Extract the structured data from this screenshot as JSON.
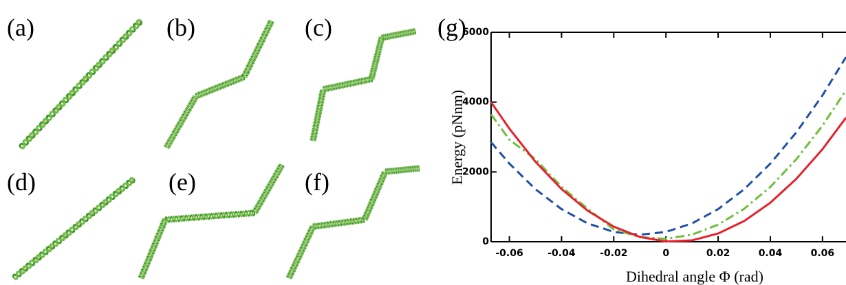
{
  "panels": [
    "(a)",
    "(b)",
    "(c)",
    "(d)",
    "(e)",
    "(f)"
  ],
  "chart_data": {
    "type": "line",
    "panel_label": "(g)",
    "xlabel": "Dihedral angle Φ (rad)",
    "ylabel": "Energy (pNnm)",
    "xlim": [
      -0.067,
      0.069
    ],
    "xticks": [
      -0.06,
      -0.04,
      -0.02,
      0,
      0.02,
      0.04,
      0.06
    ],
    "ylim": [
      0,
      6000
    ],
    "yticks": [
      0,
      2000,
      4000,
      6000
    ],
    "grid": false,
    "x": [
      -0.067,
      -0.06,
      -0.05,
      -0.04,
      -0.03,
      -0.02,
      -0.01,
      0,
      0.01,
      0.02,
      0.03,
      0.04,
      0.05,
      0.06,
      0.069
    ],
    "series": [
      {
        "color": "#1f4fa8",
        "linestyle": "dashed",
        "values": [
          2850,
          2239,
          1505,
          934,
          526,
          282,
          200,
          282,
          526,
          934,
          1505,
          2239,
          3136,
          4196,
          5290
        ]
      },
      {
        "color": "#6dbf3a",
        "linestyle": "dashdot",
        "values": [
          3650,
          2923,
          2365,
          1571,
          945,
          354,
          134,
          83,
          202,
          489,
          945,
          1571,
          2365,
          3328,
          4340
        ]
      },
      {
        "color": "#e8202a",
        "linestyle": "solid",
        "values": [
          3998,
          3239,
          2292,
          1509,
          889,
          432,
          138,
          7,
          40,
          236,
          595,
          1117,
          1803,
          2651,
          3554
        ]
      }
    ]
  }
}
